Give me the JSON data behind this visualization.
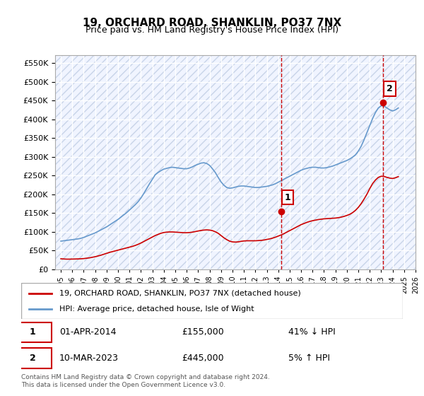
{
  "title": "19, ORCHARD ROAD, SHANKLIN, PO37 7NX",
  "subtitle": "Price paid vs. HM Land Registry's House Price Index (HPI)",
  "legend_label_red": "19, ORCHARD ROAD, SHANKLIN, PO37 7NX (detached house)",
  "legend_label_blue": "HPI: Average price, detached house, Isle of Wight",
  "annotation1_label": "1",
  "annotation1_date": "01-APR-2014",
  "annotation1_price": "£155,000",
  "annotation1_hpi": "41% ↓ HPI",
  "annotation2_label": "2",
  "annotation2_date": "10-MAR-2023",
  "annotation2_price": "£445,000",
  "annotation2_hpi": "5% ↑ HPI",
  "footnote": "Contains HM Land Registry data © Crown copyright and database right 2024.\nThis data is licensed under the Open Government Licence v3.0.",
  "red_color": "#cc0000",
  "blue_color": "#6699cc",
  "vline_color": "#cc0000",
  "bg_color": "#ffffff",
  "plot_bg_color": "#f0f4ff",
  "hatch_color": "#c8d4e8",
  "grid_color": "#ffffff",
  "ylim_min": 0,
  "ylim_max": 570000,
  "x_start_year": 1995,
  "x_end_year": 2026,
  "sale1_year": 2014.25,
  "sale1_price": 155000,
  "sale2_year": 2023.17,
  "sale2_price": 445000,
  "hpi_years": [
    1995,
    1995.25,
    1995.5,
    1995.75,
    1996,
    1996.25,
    1996.5,
    1996.75,
    1997,
    1997.25,
    1997.5,
    1997.75,
    1998,
    1998.25,
    1998.5,
    1998.75,
    1999,
    1999.25,
    1999.5,
    1999.75,
    2000,
    2000.25,
    2000.5,
    2000.75,
    2001,
    2001.25,
    2001.5,
    2001.75,
    2002,
    2002.25,
    2002.5,
    2002.75,
    2003,
    2003.25,
    2003.5,
    2003.75,
    2004,
    2004.25,
    2004.5,
    2004.75,
    2005,
    2005.25,
    2005.5,
    2005.75,
    2006,
    2006.25,
    2006.5,
    2006.75,
    2007,
    2007.25,
    2007.5,
    2007.75,
    2008,
    2008.25,
    2008.5,
    2008.75,
    2009,
    2009.25,
    2009.5,
    2009.75,
    2010,
    2010.25,
    2010.5,
    2010.75,
    2011,
    2011.25,
    2011.5,
    2011.75,
    2012,
    2012.25,
    2012.5,
    2012.75,
    2013,
    2013.25,
    2013.5,
    2013.75,
    2014,
    2014.25,
    2014.5,
    2014.75,
    2015,
    2015.25,
    2015.5,
    2015.75,
    2016,
    2016.25,
    2016.5,
    2016.75,
    2017,
    2017.25,
    2017.5,
    2017.75,
    2018,
    2018.25,
    2018.5,
    2018.75,
    2019,
    2019.25,
    2019.5,
    2019.75,
    2020,
    2020.25,
    2020.5,
    2020.75,
    2021,
    2021.25,
    2021.5,
    2021.75,
    2022,
    2022.25,
    2022.5,
    2022.75,
    2023,
    2023.25,
    2023.5,
    2023.75,
    2024,
    2024.25,
    2024.5
  ],
  "hpi_values": [
    75000,
    76000,
    77000,
    78000,
    79000,
    80000,
    81000,
    82500,
    85000,
    88000,
    91000,
    94000,
    97000,
    101000,
    105000,
    109000,
    113000,
    118000,
    123000,
    128000,
    133000,
    139000,
    145000,
    151000,
    158000,
    165000,
    172000,
    180000,
    190000,
    202000,
    215000,
    228000,
    240000,
    252000,
    258000,
    263000,
    267000,
    269000,
    271000,
    272000,
    271000,
    270000,
    269000,
    268000,
    268000,
    270000,
    273000,
    277000,
    280000,
    283000,
    284000,
    282000,
    277000,
    268000,
    258000,
    245000,
    233000,
    224000,
    218000,
    216000,
    217000,
    219000,
    221000,
    222000,
    222000,
    221000,
    220000,
    219000,
    218000,
    218000,
    219000,
    220000,
    221000,
    223000,
    225000,
    228000,
    232000,
    236000,
    240000,
    244000,
    248000,
    252000,
    256000,
    260000,
    264000,
    267000,
    269000,
    271000,
    272000,
    272000,
    271000,
    270000,
    270000,
    271000,
    273000,
    275000,
    278000,
    281000,
    284000,
    287000,
    290000,
    294000,
    299000,
    305000,
    315000,
    328000,
    345000,
    364000,
    383000,
    402000,
    418000,
    430000,
    436000,
    435000,
    430000,
    425000,
    422000,
    425000,
    430000
  ],
  "red_years": [
    1995,
    1995.25,
    1995.5,
    1995.75,
    1996,
    1996.25,
    1996.5,
    1996.75,
    1997,
    1997.25,
    1997.5,
    1997.75,
    1998,
    1998.25,
    1998.5,
    1998.75,
    1999,
    1999.25,
    1999.5,
    1999.75,
    2000,
    2000.25,
    2000.5,
    2000.75,
    2001,
    2001.25,
    2001.5,
    2001.75,
    2002,
    2002.25,
    2002.5,
    2002.75,
    2003,
    2003.25,
    2003.5,
    2003.75,
    2004,
    2004.25,
    2004.5,
    2004.75,
    2005,
    2005.25,
    2005.5,
    2005.75,
    2006,
    2006.25,
    2006.5,
    2006.75,
    2007,
    2007.25,
    2007.5,
    2007.75,
    2008,
    2008.25,
    2008.5,
    2008.75,
    2009,
    2009.25,
    2009.5,
    2009.75,
    2010,
    2010.25,
    2010.5,
    2010.75,
    2011,
    2011.25,
    2011.5,
    2011.75,
    2012,
    2012.25,
    2012.5,
    2012.75,
    2013,
    2013.25,
    2013.5,
    2013.75,
    2014,
    2014.25,
    2014.5,
    2014.75,
    2015,
    2015.25,
    2015.5,
    2015.75,
    2016,
    2016.25,
    2016.5,
    2016.75,
    2017,
    2017.25,
    2017.5,
    2017.75,
    2018,
    2018.25,
    2018.5,
    2018.75,
    2019,
    2019.25,
    2019.5,
    2019.75,
    2020,
    2020.25,
    2020.5,
    2020.75,
    2021,
    2021.25,
    2021.5,
    2021.75,
    2022,
    2022.25,
    2022.5,
    2022.75,
    2023,
    2023.25,
    2023.5,
    2023.75,
    2024,
    2024.25,
    2024.5
  ],
  "red_values": [
    28000,
    27500,
    27000,
    27000,
    27200,
    27400,
    27600,
    28000,
    28500,
    29500,
    30500,
    32000,
    33500,
    35500,
    37500,
    40000,
    42500,
    45000,
    47000,
    49000,
    51000,
    53000,
    55000,
    57000,
    59000,
    61000,
    63500,
    66500,
    70000,
    74000,
    78000,
    82000,
    86000,
    90000,
    93000,
    96000,
    98000,
    99000,
    99500,
    99500,
    99000,
    98500,
    98000,
    97500,
    97500,
    98000,
    99000,
    100500,
    102000,
    103500,
    104500,
    105000,
    104500,
    103000,
    100000,
    96000,
    90000,
    84000,
    79000,
    75000,
    73000,
    72500,
    73000,
    74500,
    75500,
    76000,
    76000,
    76000,
    76000,
    76500,
    77000,
    78000,
    79500,
    81000,
    83000,
    85500,
    88500,
    91500,
    95000,
    99000,
    103000,
    107000,
    111000,
    115000,
    119000,
    122000,
    125000,
    127500,
    129500,
    131000,
    132500,
    133500,
    134500,
    135000,
    135500,
    136000,
    136500,
    137500,
    139000,
    141000,
    143500,
    146500,
    151000,
    157000,
    165000,
    175000,
    187000,
    200000,
    215000,
    228500,
    238000,
    245000,
    248000,
    247500,
    245000,
    243000,
    242000,
    244000,
    247000
  ]
}
